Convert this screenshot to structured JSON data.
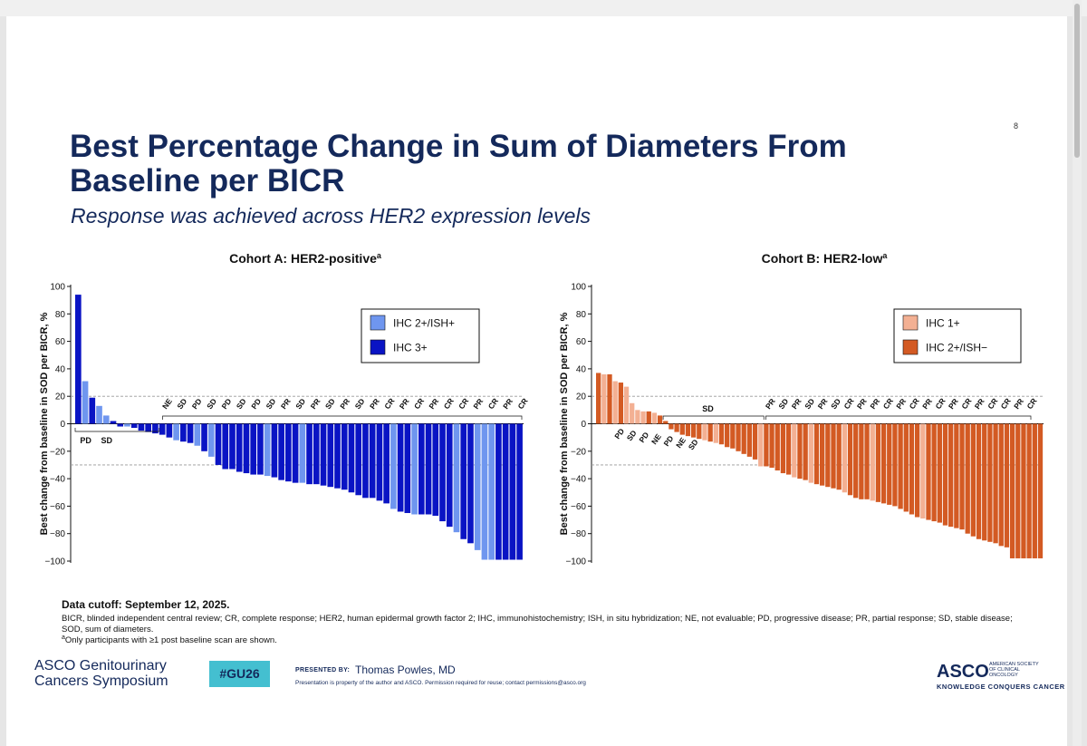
{
  "slide": {
    "page_number": "8",
    "title": "Best Percentage Change in Sum of Diameters From Baseline per BICR",
    "subtitle": "Response was achieved across HER2 expression levels"
  },
  "footer": {
    "data_cutoff_label": "Data cutoff:",
    "data_cutoff_date": "September 12, 2025",
    "abbreviations": "BICR, blinded independent central review; CR, complete response; HER2, human epidermal growth factor 2; IHC, immunohistochemistry; ISH, in situ hybridization; NE, not evaluable; PD, progressive disease; PR, partial response; SD, stable disease; SOD, sum of diameters.",
    "footnote_marker": "a",
    "footnote_text": "Only participants with ≥1 post baseline scan are shown.",
    "asco_gu_line1": "ASCO Genitourinary",
    "asco_gu_line2": "Cancers Symposium",
    "hashtag": "#GU26",
    "presented_by": "PRESENTED BY:",
    "presenter": "Thomas Powles, MD",
    "disclaimer": "Presentation is property of the author and ASCO. Permission required for reuse; contact permissions@asco.org",
    "asco_word": "ASCO",
    "asco_society": "AMERICAN SOCIETY OF CLINICAL ONCOLOGY",
    "asco_tagline": "KNOWLEDGE CONQUERS CANCER"
  },
  "chart_data": [
    {
      "type": "bar",
      "title": "Cohort A: HER2-positive",
      "title_superscript": "a",
      "ylabel": "Best change from baseline in SOD per BICR, %",
      "ylim": [
        -105,
        105
      ],
      "yticks": [
        100,
        80,
        60,
        40,
        20,
        0,
        -20,
        -40,
        -60,
        -80,
        -100
      ],
      "reference_lines": [
        20,
        -30
      ],
      "legend": {
        "placement": "top-right",
        "items": [
          {
            "label": "IHC 2+/ISH+",
            "color": "#6f96ef"
          },
          {
            "label": "IHC 3+",
            "color": "#0a14c4"
          }
        ]
      },
      "series": [
        {
          "name": "IHC 2+/ISH+",
          "color": "#6f96ef"
        },
        {
          "name": "IHC 3+",
          "color": "#0a14c4"
        }
      ],
      "bar_series": [
        "IHC 3+",
        "IHC 2+/ISH+",
        "IHC 3+",
        "IHC 2+/ISH+",
        "IHC 2+/ISH+",
        "IHC 3+",
        "IHC 3+",
        "IHC 2+/ISH+",
        "IHC 3+",
        "IHC 3+",
        "IHC 3+",
        "IHC 3+",
        "IHC 3+",
        "IHC 3+",
        "IHC 2+/ISH+",
        "IHC 3+",
        "IHC 3+",
        "IHC 2+/ISH+",
        "IHC 3+",
        "IHC 2+/ISH+",
        "IHC 3+",
        "IHC 3+",
        "IHC 3+",
        "IHC 3+",
        "IHC 3+",
        "IHC 3+",
        "IHC 3+",
        "IHC 2+/ISH+",
        "IHC 3+",
        "IHC 3+",
        "IHC 3+",
        "IHC 3+",
        "IHC 2+/ISH+",
        "IHC 3+",
        "IHC 3+",
        "IHC 3+",
        "IHC 3+",
        "IHC 3+",
        "IHC 3+",
        "IHC 3+",
        "IHC 3+",
        "IHC 3+",
        "IHC 3+",
        "IHC 3+",
        "IHC 3+",
        "IHC 2+/ISH+",
        "IHC 3+",
        "IHC 3+",
        "IHC 2+/ISH+",
        "IHC 3+",
        "IHC 3+",
        "IHC 3+",
        "IHC 3+",
        "IHC 3+",
        "IHC 2+/ISH+",
        "IHC 3+",
        "IHC 3+",
        "IHC 2+/ISH+",
        "IHC 2+/ISH+",
        "IHC 2+/ISH+",
        "IHC 3+",
        "IHC 3+",
        "IHC 3+",
        "IHC 3+"
      ],
      "values": [
        94,
        31,
        19,
        13,
        6,
        2,
        -2,
        -2,
        -3,
        -5,
        -6,
        -7,
        -8,
        -10,
        -12,
        -13,
        -14,
        -16,
        -20,
        -24,
        -30,
        -33,
        -33,
        -35,
        -36,
        -37,
        -37,
        -38,
        -39,
        -41,
        -42,
        -43,
        -43,
        -44,
        -44,
        -45,
        -46,
        -47,
        -48,
        -50,
        -52,
        -54,
        -54,
        -56,
        -58,
        -62,
        -64,
        -65,
        -66,
        -66,
        -66,
        -67,
        -71,
        -75,
        -79,
        -84,
        -87,
        -92,
        -99,
        -99,
        -99,
        -99,
        -99,
        -99
      ],
      "response_labels": [
        "PD",
        "SD",
        "NE",
        "SD",
        "PD",
        "SD",
        "PD",
        "SD",
        "PD",
        "SD",
        "PR",
        "SD",
        "PR",
        "SD",
        "PR",
        "SD",
        "PR",
        "CR",
        "PR",
        "CR",
        "PR",
        "CR",
        "CR",
        "PR",
        "CR",
        "PR",
        "CR"
      ],
      "below_zero_labels": [
        "PD",
        "SD"
      ]
    },
    {
      "type": "bar",
      "title": "Cohort B: HER2-low",
      "title_superscript": "a",
      "ylabel": "Best change from baseline in SOD per BICR, %",
      "ylim": [
        -105,
        105
      ],
      "yticks": [
        100,
        80,
        60,
        40,
        20,
        0,
        -20,
        -40,
        -60,
        -80,
        -100
      ],
      "reference_lines": [
        20,
        -30
      ],
      "legend": {
        "placement": "top-right",
        "items": [
          {
            "label": "IHC 1+",
            "color": "#f3b093"
          },
          {
            "label": "IHC 2+/ISH−",
            "color": "#d35a23"
          }
        ]
      },
      "series": [
        {
          "name": "IHC 1+",
          "color": "#f3b093"
        },
        {
          "name": "IHC 2+/ISH−",
          "color": "#d35a23"
        }
      ],
      "bar_series": [
        "IHC 2+/ISH−",
        "IHC 1+",
        "IHC 2+/ISH−",
        "IHC 1+",
        "IHC 2+/ISH−",
        "IHC 1+",
        "IHC 1+",
        "IHC 1+",
        "IHC 1+",
        "IHC 2+/ISH−",
        "IHC 1+",
        "IHC 2+/ISH−",
        "IHC 2+/ISH−",
        "IHC 2+/ISH−",
        "IHC 2+/ISH−",
        "IHC 2+/ISH−",
        "IHC 2+/ISH−",
        "IHC 2+/ISH−",
        "IHC 2+/ISH−",
        "IHC 1+",
        "IHC 2+/ISH−",
        "IHC 1+",
        "IHC 2+/ISH−",
        "IHC 2+/ISH−",
        "IHC 2+/ISH−",
        "IHC 2+/ISH−",
        "IHC 2+/ISH−",
        "IHC 2+/ISH−",
        "IHC 2+/ISH−",
        "IHC 1+",
        "IHC 2+/ISH−",
        "IHC 2+/ISH−",
        "IHC 2+/ISH−",
        "IHC 2+/ISH−",
        "IHC 2+/ISH−",
        "IHC 1+",
        "IHC 2+/ISH−",
        "IHC 2+/ISH−",
        "IHC 1+",
        "IHC 2+/ISH−",
        "IHC 2+/ISH−",
        "IHC 2+/ISH−",
        "IHC 2+/ISH−",
        "IHC 2+/ISH−",
        "IHC 1+",
        "IHC 2+/ISH−",
        "IHC 2+/ISH−",
        "IHC 2+/ISH−",
        "IHC 2+/ISH−",
        "IHC 1+",
        "IHC 2+/ISH−",
        "IHC 2+/ISH−",
        "IHC 2+/ISH−",
        "IHC 2+/ISH−",
        "IHC 2+/ISH−",
        "IHC 2+/ISH−",
        "IHC 2+/ISH−",
        "IHC 2+/ISH−",
        "IHC 1+",
        "IHC 2+/ISH−",
        "IHC 2+/ISH−",
        "IHC 2+/ISH−",
        "IHC 2+/ISH−",
        "IHC 2+/ISH−",
        "IHC 2+/ISH−",
        "IHC 2+/ISH−",
        "IHC 2+/ISH−",
        "IHC 2+/ISH−",
        "IHC 2+/ISH−",
        "IHC 2+/ISH−",
        "IHC 2+/ISH−",
        "IHC 2+/ISH−",
        "IHC 2+/ISH−",
        "IHC 2+/ISH−",
        "IHC 2+/ISH−",
        "IHC 2+/ISH−",
        "IHC 2+/ISH−",
        "IHC 2+/ISH−",
        "IHC 2+/ISH−",
        "IHC 2+/ISH−"
      ],
      "values": [
        37,
        36,
        36,
        31,
        30,
        27,
        15,
        10,
        9,
        9,
        8,
        6,
        2,
        -4,
        -6,
        -8,
        -9,
        -10,
        -11,
        -12,
        -13,
        -14,
        -15,
        -17,
        -18,
        -20,
        -22,
        -24,
        -26,
        -31,
        -31,
        -32,
        -34,
        -36,
        -37,
        -39,
        -40,
        -41,
        -43,
        -44,
        -45,
        -46,
        -47,
        -48,
        -50,
        -52,
        -54,
        -55,
        -55,
        -56,
        -57,
        -58,
        -59,
        -60,
        -62,
        -64,
        -66,
        -68,
        -69,
        -70,
        -71,
        -72,
        -74,
        -75,
        -76,
        -77,
        -80,
        -82,
        -84,
        -85,
        -86,
        -87,
        -89,
        -90,
        -98,
        -98,
        -98,
        -98,
        -98,
        -98
      ],
      "response_labels": [
        "PD",
        "SD",
        "PD",
        "NE",
        "PD",
        "NE",
        "SD",
        "SD",
        "PR",
        "SD",
        "PR",
        "SD",
        "PR",
        "SD",
        "CR",
        "PR",
        "PR",
        "CR",
        "PR",
        "CR",
        "PR",
        "CR",
        "PR",
        "CR",
        "PR",
        "CR",
        "CR",
        "PR",
        "CR"
      ]
    }
  ]
}
